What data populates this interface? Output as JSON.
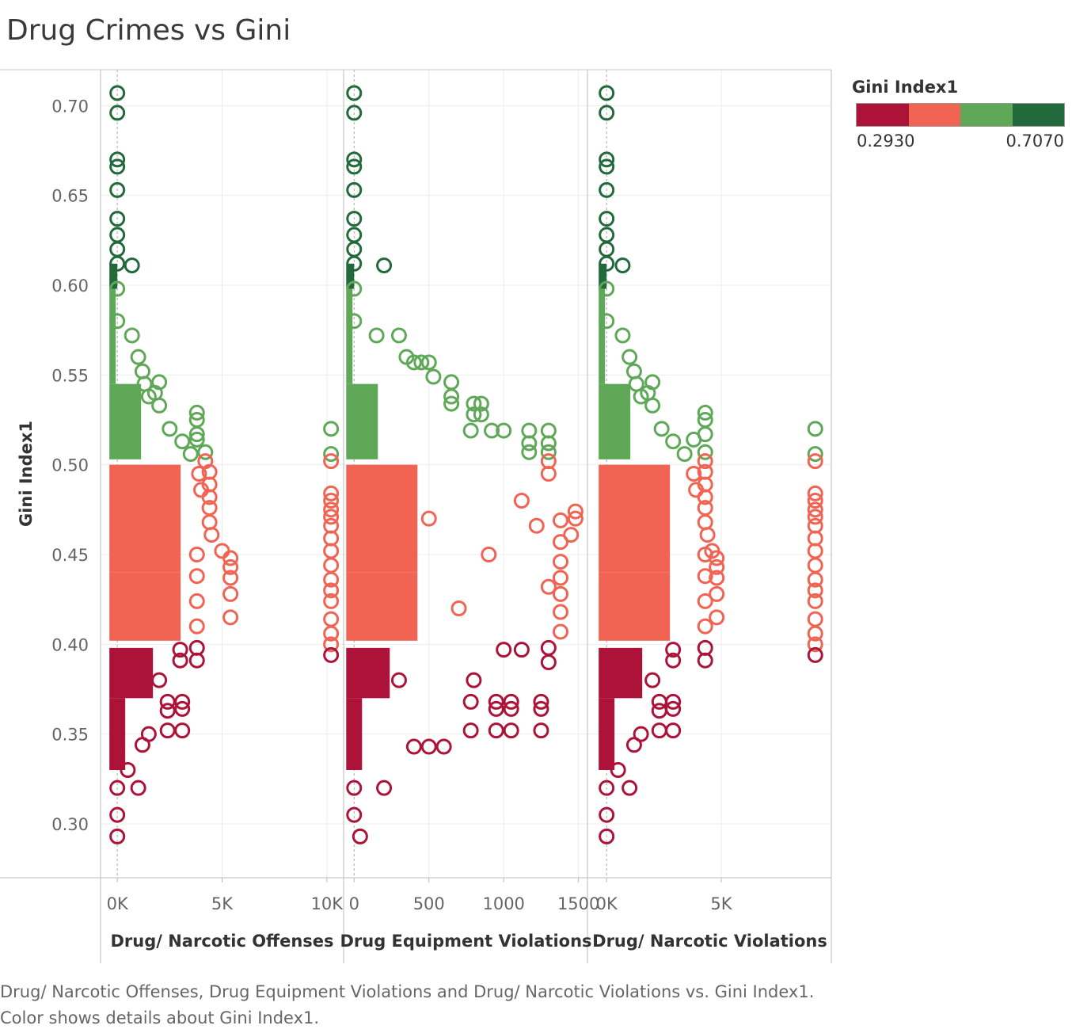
{
  "title": "Drug Crimes vs Gini",
  "caption": "Drug/ Narcotic Offenses, Drug Equipment Violations and Drug/ Narcotic Violations vs. Gini Index1.  Color shows details about Gini Index1.",
  "legend": {
    "title": "Gini Index1",
    "min_label": "0.2930",
    "max_label": "0.7070",
    "colors": [
      "#ad1338",
      "#f16453",
      "#5ea858",
      "#226a3c"
    ]
  },
  "colors": {
    "low": "#ad1338",
    "mid_low": "#f16453",
    "mid_high": "#5ea858",
    "high": "#226a3c",
    "grid": "#ececec",
    "axis": "#bbbbbb"
  },
  "chart_data": {
    "type": "scatter",
    "marker": "open-circle",
    "ylabel": "Gini Index1",
    "ylim": [
      0.27,
      0.72
    ],
    "yticks": [
      0.3,
      0.35,
      0.4,
      0.45,
      0.5,
      0.55,
      0.6,
      0.65,
      0.7
    ],
    "ytick_labels": [
      "0.30",
      "0.35",
      "0.40",
      "0.45",
      "0.50",
      "0.55",
      "0.60",
      "0.65",
      "0.70"
    ],
    "color_thresholds": [
      0.4,
      0.5025,
      0.6
    ],
    "panels": [
      {
        "xlabel": "Drug/ Narcotic Offenses",
        "xlim": [
          -800,
          10800
        ],
        "xticks": [
          0,
          5000,
          10000
        ],
        "xtick_labels": [
          "0K",
          "5K",
          "10K"
        ],
        "points": [
          [
            0,
            0.707
          ],
          [
            0,
            0.696
          ],
          [
            0,
            0.67
          ],
          [
            0,
            0.666
          ],
          [
            0,
            0.653
          ],
          [
            0,
            0.637
          ],
          [
            0,
            0.628
          ],
          [
            0,
            0.62
          ],
          [
            0,
            0.612
          ],
          [
            700,
            0.611
          ],
          [
            0,
            0.598
          ],
          [
            0,
            0.58
          ],
          [
            700,
            0.572
          ],
          [
            1000,
            0.56
          ],
          [
            1200,
            0.552
          ],
          [
            1300,
            0.545
          ],
          [
            1500,
            0.538
          ],
          [
            2000,
            0.546
          ],
          [
            1800,
            0.54
          ],
          [
            2000,
            0.533
          ],
          [
            2500,
            0.52
          ],
          [
            3100,
            0.513
          ],
          [
            3500,
            0.506
          ],
          [
            3800,
            0.514
          ],
          [
            3800,
            0.529
          ],
          [
            3800,
            0.525
          ],
          [
            3800,
            0.517
          ],
          [
            4200,
            0.507
          ],
          [
            4200,
            0.502
          ],
          [
            4400,
            0.496
          ],
          [
            4400,
            0.489
          ],
          [
            4400,
            0.482
          ],
          [
            4400,
            0.476
          ],
          [
            4400,
            0.468
          ],
          [
            3900,
            0.495
          ],
          [
            4000,
            0.486
          ],
          [
            4500,
            0.461
          ],
          [
            5000,
            0.452
          ],
          [
            5400,
            0.448
          ],
          [
            5400,
            0.443
          ],
          [
            5400,
            0.437
          ],
          [
            5400,
            0.428
          ],
          [
            5400,
            0.415
          ],
          [
            3800,
            0.45
          ],
          [
            3800,
            0.438
          ],
          [
            3800,
            0.424
          ],
          [
            3800,
            0.41
          ],
          [
            3800,
            0.398
          ],
          [
            3800,
            0.391
          ],
          [
            3000,
            0.397
          ],
          [
            3000,
            0.391
          ],
          [
            2400,
            0.368
          ],
          [
            2400,
            0.363
          ],
          [
            2400,
            0.352
          ],
          [
            3100,
            0.368
          ],
          [
            3100,
            0.364
          ],
          [
            3100,
            0.352
          ],
          [
            1200,
            0.344
          ],
          [
            0,
            0.32
          ],
          [
            1000,
            0.32
          ],
          [
            0,
            0.305
          ],
          [
            0,
            0.293
          ],
          [
            2000,
            0.38
          ],
          [
            1500,
            0.35
          ],
          [
            500,
            0.33
          ],
          [
            2000,
            0.42
          ],
          [
            10200,
            0.52
          ],
          [
            10200,
            0.506
          ],
          [
            10200,
            0.502
          ],
          [
            10200,
            0.484
          ],
          [
            10200,
            0.48
          ],
          [
            10200,
            0.475
          ],
          [
            10200,
            0.471
          ],
          [
            10200,
            0.466
          ],
          [
            10200,
            0.459
          ],
          [
            10200,
            0.452
          ],
          [
            10200,
            0.444
          ],
          [
            10200,
            0.436
          ],
          [
            10200,
            0.43
          ],
          [
            10200,
            0.424
          ],
          [
            10200,
            0.414
          ],
          [
            10200,
            0.406
          ],
          [
            10200,
            0.4
          ],
          [
            10200,
            0.394
          ]
        ]
      },
      {
        "xlabel": "Drug Equipment Violations",
        "xlim": [
          -65,
          1560
        ],
        "xticks": [
          0,
          500,
          1000,
          1500
        ],
        "xtick_labels": [
          "0",
          "500",
          "1000",
          "1500"
        ],
        "points": [
          [
            0,
            0.707
          ],
          [
            0,
            0.696
          ],
          [
            0,
            0.67
          ],
          [
            0,
            0.666
          ],
          [
            0,
            0.653
          ],
          [
            0,
            0.637
          ],
          [
            0,
            0.628
          ],
          [
            0,
            0.62
          ],
          [
            0,
            0.612
          ],
          [
            200,
            0.611
          ],
          [
            0,
            0.598
          ],
          [
            0,
            0.58
          ],
          [
            150,
            0.572
          ],
          [
            300,
            0.572
          ],
          [
            350,
            0.56
          ],
          [
            400,
            0.557
          ],
          [
            450,
            0.557
          ],
          [
            500,
            0.557
          ],
          [
            530,
            0.549
          ],
          [
            650,
            0.546
          ],
          [
            650,
            0.538
          ],
          [
            650,
            0.534
          ],
          [
            800,
            0.534
          ],
          [
            850,
            0.534
          ],
          [
            800,
            0.528
          ],
          [
            850,
            0.528
          ],
          [
            780,
            0.519
          ],
          [
            920,
            0.519
          ],
          [
            1000,
            0.519
          ],
          [
            1170,
            0.519
          ],
          [
            1170,
            0.512
          ],
          [
            1170,
            0.507
          ],
          [
            1300,
            0.519
          ],
          [
            1300,
            0.512
          ],
          [
            1300,
            0.507
          ],
          [
            1300,
            0.502
          ],
          [
            1300,
            0.495
          ],
          [
            1480,
            0.474
          ],
          [
            1480,
            0.47
          ],
          [
            1450,
            0.461
          ],
          [
            1380,
            0.469
          ],
          [
            1380,
            0.457
          ],
          [
            1380,
            0.446
          ],
          [
            1380,
            0.437
          ],
          [
            1380,
            0.428
          ],
          [
            1380,
            0.418
          ],
          [
            1380,
            0.407
          ],
          [
            1300,
            0.432
          ],
          [
            1220,
            0.466
          ],
          [
            1120,
            0.48
          ],
          [
            1300,
            0.398
          ],
          [
            1300,
            0.39
          ],
          [
            1120,
            0.397
          ],
          [
            1000,
            0.397
          ],
          [
            1250,
            0.368
          ],
          [
            1250,
            0.364
          ],
          [
            1250,
            0.352
          ],
          [
            1050,
            0.368
          ],
          [
            1050,
            0.364
          ],
          [
            1050,
            0.352
          ],
          [
            950,
            0.368
          ],
          [
            950,
            0.364
          ],
          [
            950,
            0.352
          ],
          [
            780,
            0.368
          ],
          [
            780,
            0.352
          ],
          [
            600,
            0.343
          ],
          [
            500,
            0.343
          ],
          [
            400,
            0.343
          ],
          [
            200,
            0.32
          ],
          [
            0,
            0.32
          ],
          [
            0,
            0.305
          ],
          [
            40,
            0.293
          ],
          [
            800,
            0.38
          ],
          [
            700,
            0.42
          ],
          [
            500,
            0.47
          ],
          [
            300,
            0.38
          ],
          [
            900,
            0.45
          ]
        ]
      },
      {
        "xlabel": "Drug/ Narcotic Violations",
        "xlim": [
          -800,
          9800
        ],
        "xticks": [
          0,
          5000
        ],
        "xtick_labels": [
          "0K",
          "5K"
        ],
        "points": [
          [
            0,
            0.707
          ],
          [
            0,
            0.696
          ],
          [
            0,
            0.67
          ],
          [
            0,
            0.666
          ],
          [
            0,
            0.653
          ],
          [
            0,
            0.637
          ],
          [
            0,
            0.628
          ],
          [
            0,
            0.62
          ],
          [
            0,
            0.612
          ],
          [
            700,
            0.611
          ],
          [
            0,
            0.598
          ],
          [
            0,
            0.58
          ],
          [
            700,
            0.572
          ],
          [
            1000,
            0.56
          ],
          [
            1200,
            0.552
          ],
          [
            1300,
            0.545
          ],
          [
            1500,
            0.538
          ],
          [
            2000,
            0.546
          ],
          [
            1800,
            0.54
          ],
          [
            2000,
            0.533
          ],
          [
            2400,
            0.52
          ],
          [
            2900,
            0.513
          ],
          [
            3400,
            0.506
          ],
          [
            3800,
            0.514
          ],
          [
            4300,
            0.529
          ],
          [
            4300,
            0.525
          ],
          [
            4300,
            0.517
          ],
          [
            4300,
            0.507
          ],
          [
            4300,
            0.502
          ],
          [
            4300,
            0.496
          ],
          [
            4300,
            0.489
          ],
          [
            4300,
            0.482
          ],
          [
            4300,
            0.476
          ],
          [
            4300,
            0.468
          ],
          [
            3800,
            0.495
          ],
          [
            3900,
            0.486
          ],
          [
            4400,
            0.461
          ],
          [
            4600,
            0.452
          ],
          [
            4800,
            0.448
          ],
          [
            4800,
            0.443
          ],
          [
            4800,
            0.437
          ],
          [
            4800,
            0.428
          ],
          [
            4800,
            0.415
          ],
          [
            4300,
            0.45
          ],
          [
            4300,
            0.438
          ],
          [
            4300,
            0.424
          ],
          [
            4300,
            0.41
          ],
          [
            4300,
            0.398
          ],
          [
            4300,
            0.391
          ],
          [
            2900,
            0.397
          ],
          [
            2900,
            0.391
          ],
          [
            2300,
            0.368
          ],
          [
            2300,
            0.363
          ],
          [
            2300,
            0.352
          ],
          [
            2900,
            0.368
          ],
          [
            2900,
            0.364
          ],
          [
            2900,
            0.352
          ],
          [
            1200,
            0.344
          ],
          [
            0,
            0.32
          ],
          [
            1000,
            0.32
          ],
          [
            0,
            0.305
          ],
          [
            0,
            0.293
          ],
          [
            2000,
            0.38
          ],
          [
            1500,
            0.35
          ],
          [
            500,
            0.33
          ],
          [
            2000,
            0.42
          ],
          [
            9100,
            0.52
          ],
          [
            9100,
            0.506
          ],
          [
            9100,
            0.502
          ],
          [
            9100,
            0.484
          ],
          [
            9100,
            0.48
          ],
          [
            9100,
            0.475
          ],
          [
            9100,
            0.471
          ],
          [
            9100,
            0.466
          ],
          [
            9100,
            0.459
          ],
          [
            9100,
            0.452
          ],
          [
            9100,
            0.444
          ],
          [
            9100,
            0.436
          ],
          [
            9100,
            0.43
          ],
          [
            9100,
            0.424
          ],
          [
            9100,
            0.414
          ],
          [
            9100,
            0.406
          ],
          [
            9100,
            0.4
          ],
          [
            9100,
            0.394
          ]
        ]
      }
    ]
  }
}
